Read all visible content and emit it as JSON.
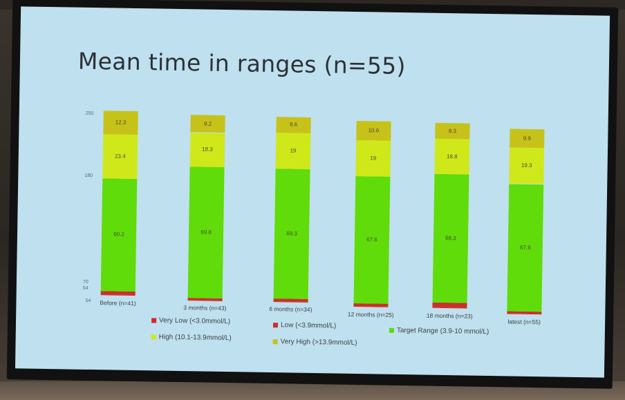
{
  "slide": {
    "title": "Mean time in ranges (n=55)"
  },
  "chart_data": {
    "type": "bar",
    "stacked": true,
    "normalized_percent": true,
    "categories": [
      "Before (n=41)",
      "3 months (n=43)",
      "6 months (n=34)",
      "12 months (n=25)",
      "18 months (n=23)",
      "latest (n=55)"
    ],
    "y_tick_labels": [
      "250",
      "180",
      "70",
      "54",
      "54"
    ],
    "series": [
      {
        "name": "Very Low (<3.0mmol/L)",
        "color": "#d9252b",
        "values": [
          0.5,
          0.3,
          0.3,
          0.3,
          0.3,
          0.2
        ]
      },
      {
        "name": "Low (<3.9mmol/L)",
        "color": "#c9302c",
        "values": [
          1.6,
          0.9,
          1.2,
          1.5,
          2.6,
          1.2
        ]
      },
      {
        "name": "Target Range (3.9-10 mmol/L)",
        "color": "#5fdc0a",
        "values": [
          60.2,
          69.8,
          69.3,
          67.6,
          68.3,
          67.9
        ]
      },
      {
        "name": "High (10.1-13.9mmol/L)",
        "color": "#cfe81a",
        "values": [
          23.4,
          18.3,
          19,
          19,
          18.8,
          19.3
        ]
      },
      {
        "name": "Very High (>13.9mmol/L)",
        "color": "#c7c21a",
        "values": [
          12.3,
          9.2,
          8.6,
          10.6,
          8.3,
          9.9
        ]
      }
    ],
    "data_labels": {
      "Target Range (3.9-10 mmol/L)": [
        "60.2",
        "69.8",
        "69.3",
        "67.6",
        "68.3",
        "67.9"
      ],
      "High (10.1-13.9mmol/L)": [
        "23.4",
        "18.3",
        "19",
        "19",
        "18.8",
        "19.3"
      ],
      "Very High (>13.9mmol/L)": [
        "12.3",
        "9.2",
        "8.6",
        "10.6",
        "8.3",
        "9.9"
      ]
    },
    "legend_position": "bottom",
    "grid": false
  }
}
